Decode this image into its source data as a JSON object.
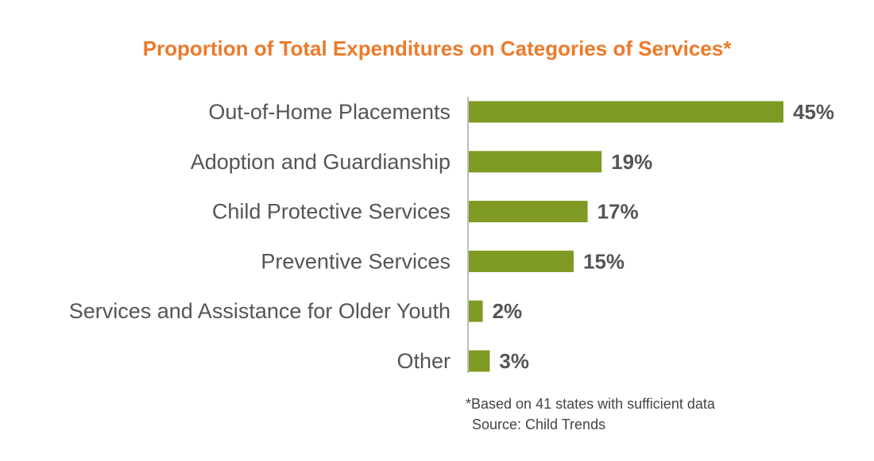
{
  "chart_data": {
    "type": "bar",
    "orientation": "horizontal",
    "title": "Proportion of Total Expenditures on Categories of Services*",
    "categories": [
      "Out-of-Home Placements",
      "Adoption and Guardianship",
      "Child Protective Services",
      "Preventive Services",
      "Services and Assistance for Older Youth",
      "Other"
    ],
    "values": [
      45,
      19,
      17,
      15,
      2,
      3
    ],
    "value_labels": [
      "45%",
      "19%",
      "17%",
      "15%",
      "2%",
      "3%"
    ],
    "xlim": [
      0,
      45
    ],
    "grid": false,
    "colors": {
      "bar": "#7f9a22",
      "title": "#ec7a2a",
      "axis": "#a6a6a6"
    },
    "footnote": "*Based on 41 states with sufficient data",
    "source": "Source: Child Trends"
  }
}
